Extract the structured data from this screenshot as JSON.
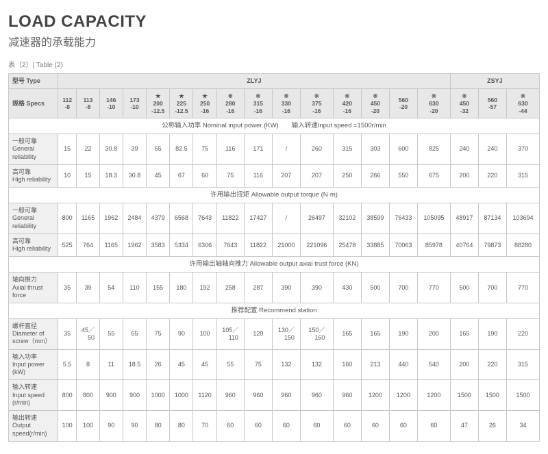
{
  "title": "LOAD CAPACITY",
  "subtitle": "减速器的承载能力",
  "table_label": "表（2）| Table (2)",
  "head": {
    "type_label": "型号 Type",
    "specs_label": "规格 Specs",
    "group1": "ZLYJ",
    "group2": "ZSYJ",
    "specs": [
      "112\n-8",
      "113\n-8",
      "146\n-10",
      "173\n-10",
      "★\n200\n-12.5",
      "★\n225\n-12.5",
      "★\n250\n-16",
      "※\n280\n-16",
      "※\n315\n-16",
      "※\n330\n-16",
      "※\n375\n-16",
      "※\n420\n-16",
      "※\n450\n-20",
      "560\n-20",
      "※\n630\n-20",
      "※\n450\n-32",
      "560\n-57",
      "※\n630\n-44"
    ]
  },
  "sections": [
    {
      "title": "公称输入功率 Nominal input power (KW)　　输入转速Input speed =1500r/min",
      "rows": [
        {
          "label": "一般可靠\nGeneral reliability",
          "vals": [
            "15",
            "22",
            "30.8",
            "39",
            "55",
            "82.5",
            "75",
            "116",
            "171",
            "/",
            "260",
            "315",
            "303",
            "600",
            "825",
            "240",
            "240",
            "370"
          ]
        },
        {
          "label": "高可靠\nHigh reliability",
          "vals": [
            "10",
            "15",
            "18.3",
            "30.8",
            "45",
            "67",
            "60",
            "75",
            "116",
            "207",
            "207",
            "250",
            "266",
            "550",
            "675",
            "200",
            "220",
            "315"
          ]
        }
      ]
    },
    {
      "title": "许用输出扭矩 Allowable output torque (N·m)",
      "rows": [
        {
          "label": "一般可靠\nGeneral reliability",
          "vals": [
            "800",
            "1165",
            "1962",
            "2484",
            "4379",
            "6568",
            "7643",
            "11822",
            "17427",
            "/",
            "26497",
            "32102",
            "38599",
            "76433",
            "105095",
            "48917",
            "87134",
            "103694"
          ]
        },
        {
          "label": "高可靠\nHigh reliability",
          "vals": [
            "525",
            "764",
            "1165",
            "1962",
            "3583",
            "5334",
            "6306",
            "7643",
            "11822",
            "21000",
            "221096",
            "25478",
            "33885",
            "70063",
            "85978",
            "40764",
            "79873",
            "88280"
          ]
        }
      ]
    },
    {
      "title": "许用输出轴轴向推力 Allowable output axial trust force (KN)",
      "rows": [
        {
          "label": "轴向推力\nAxial thrust force",
          "vals": [
            "35",
            "39",
            "54",
            "110",
            "155",
            "180",
            "192",
            "258",
            "287",
            "390",
            "390",
            "430",
            "500",
            "700",
            "770",
            "500",
            "700",
            "770"
          ]
        }
      ]
    },
    {
      "title": "推荐配置 Recommend station",
      "rows": [
        {
          "label": "螺杆直径\nDiameter of\nscrew（mm）",
          "vals": [
            "35",
            "45／\n　50",
            "55",
            "65",
            "75",
            "90",
            "100",
            "105／\n　110",
            "120",
            "130／\n　150",
            "150／\n　160",
            "165",
            "165",
            "190",
            "200",
            "165",
            "190",
            "220"
          ]
        },
        {
          "label": "输入功率\nInput power (kW)",
          "vals": [
            "5.5",
            "8",
            "11",
            "18.5",
            "26",
            "45",
            "45",
            "55",
            "75",
            "132",
            "132",
            "160",
            "213",
            "440",
            "540",
            "200",
            "220",
            "315"
          ]
        },
        {
          "label": "输入转速\nInput speed (r/min)",
          "vals": [
            "800",
            "800",
            "900",
            "900",
            "1000",
            "1000",
            "1120",
            "960",
            "960",
            "960",
            "960",
            "960",
            "1200",
            "1200",
            "1200",
            "1500",
            "1500",
            "1500"
          ]
        },
        {
          "label": "输出转速\nOutput speed(r/min)",
          "vals": [
            "100",
            "100",
            "90",
            "90",
            "80",
            "80",
            "70",
            "60",
            "60",
            "60",
            "60",
            "60",
            "60",
            "60",
            "60",
            "47",
            "26",
            "34"
          ]
        }
      ]
    }
  ]
}
